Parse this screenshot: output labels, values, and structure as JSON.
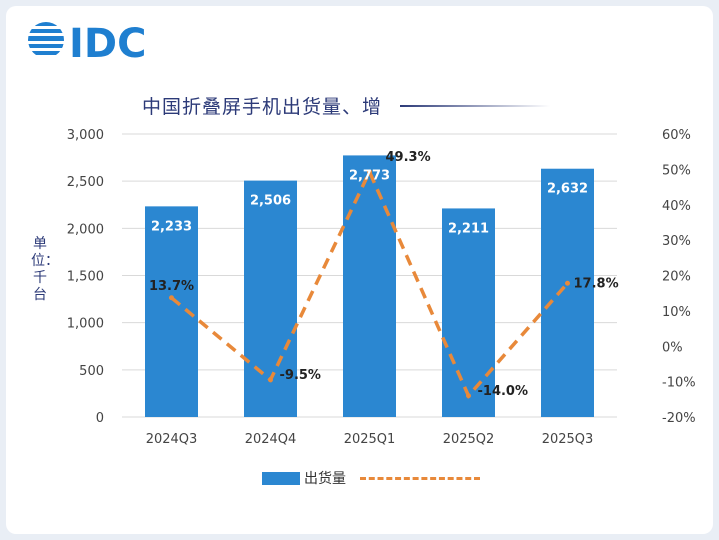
{
  "header": {
    "logo_text": "IDC",
    "title": "中国折叠屏手机出货量、增"
  },
  "colors": {
    "bar": "#2b87d1",
    "line": "#e8893a",
    "axis_text": "#444444",
    "title": "#2c3a78"
  },
  "chart_data": {
    "type": "bar",
    "title": "中国折叠屏手机出货量、增",
    "ylabel": "单位：千台",
    "categories": [
      "2024Q3",
      "2024Q4",
      "2025Q1",
      "2025Q2",
      "2025Q3"
    ],
    "series": [
      {
        "name": "出货量",
        "type": "bar",
        "axis": "left",
        "values": [
          2233,
          2506,
          2773,
          2211,
          2632
        ],
        "labels": [
          "2,233",
          "2,506",
          "2,773",
          "2,211",
          "2,632"
        ]
      },
      {
        "type": "line",
        "axis": "right",
        "style": "dashed",
        "values": [
          13.7,
          -9.5,
          49.3,
          -14.0,
          17.8
        ],
        "labels": [
          "13.7%",
          "-9.5%",
          "49.3%",
          "-14.0%",
          "17.8%"
        ]
      }
    ],
    "ylim_left": [
      0,
      3000
    ],
    "ylim_right": [
      -20,
      60
    ],
    "yticks_left": [
      "3,000",
      "2,500",
      "2,000",
      "1,500",
      "1,000",
      "500",
      "0"
    ],
    "yticks_right": [
      "60%",
      "50%",
      "40%",
      "30%",
      "20%",
      "10%",
      "0%",
      "-10%",
      "-20%"
    ],
    "grid": true,
    "legend_position": "bottom"
  }
}
